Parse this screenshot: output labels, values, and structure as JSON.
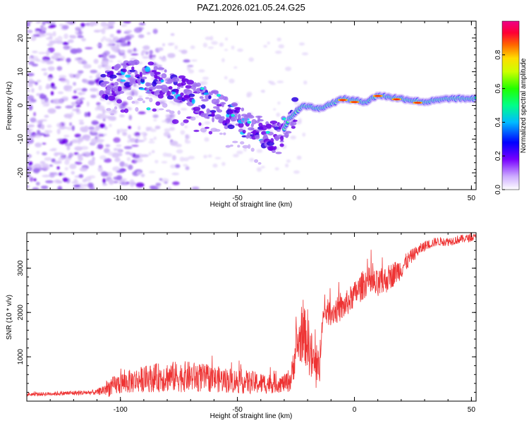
{
  "title": "PAZ1.2026.021.05.24.G25",
  "chart_data": [
    {
      "type": "heatmap",
      "xlabel": "Height of straight line (km)",
      "ylabel": "Frequency (Hz)",
      "xlim": [
        -140,
        52
      ],
      "ylim": [
        -25,
        25
      ],
      "x_ticks": [
        "-100",
        "-50",
        "0",
        "50"
      ],
      "y_ticks": [
        "20",
        "10",
        "0",
        "-10",
        "-20"
      ],
      "colorbar": {
        "label": "Normalized spectral amplitude",
        "range": [
          0.0,
          1.0
        ],
        "ticks": [
          "0.0",
          "0.2",
          "0.4",
          "0.6",
          "0.8"
        ]
      },
      "ridge": {
        "x": [
          -108,
          -100,
          -90,
          -80,
          -70,
          -60,
          -50,
          -40,
          -32,
          -28,
          -22,
          -15,
          -5,
          5,
          10,
          20,
          30,
          40,
          52
        ],
        "freq_hz": [
          5,
          8,
          9,
          6,
          3,
          0,
          -4,
          -8,
          -10,
          -4,
          0,
          -1,
          2,
          1,
          3,
          2,
          1,
          2,
          2
        ]
      }
    },
    {
      "type": "line",
      "xlabel": "Height of straight line (km)",
      "ylabel": "SNR (10 * v/v)",
      "xlim": [
        -140,
        52
      ],
      "ylim": [
        0,
        3800
      ],
      "x_ticks": [
        "-100",
        "-50",
        "0",
        "50"
      ],
      "y_ticks": [
        "1000",
        "2000",
        "3000"
      ],
      "color": "#ee3333",
      "envelope": {
        "x": [
          -140,
          -110,
          -105,
          -100,
          -90,
          -80,
          -70,
          -60,
          -50,
          -40,
          -30,
          -27,
          -25,
          -22,
          -20,
          -18,
          -15,
          -14,
          -12,
          -10,
          -5,
          0,
          5,
          10,
          15,
          20,
          25,
          30,
          35,
          40,
          45,
          52
        ],
        "mean": [
          150,
          200,
          300,
          400,
          500,
          550,
          550,
          500,
          450,
          400,
          400,
          500,
          1200,
          1500,
          1400,
          900,
          600,
          1800,
          2000,
          2000,
          2100,
          2400,
          2700,
          2600,
          2800,
          3000,
          3300,
          3500,
          3600,
          3600,
          3650,
          3700
        ],
        "amp": [
          40,
          60,
          200,
          250,
          300,
          350,
          350,
          300,
          280,
          250,
          200,
          300,
          500,
          600,
          700,
          600,
          500,
          300,
          300,
          300,
          300,
          300,
          350,
          350,
          300,
          250,
          150,
          120,
          100,
          100,
          100,
          80
        ]
      }
    }
  ]
}
